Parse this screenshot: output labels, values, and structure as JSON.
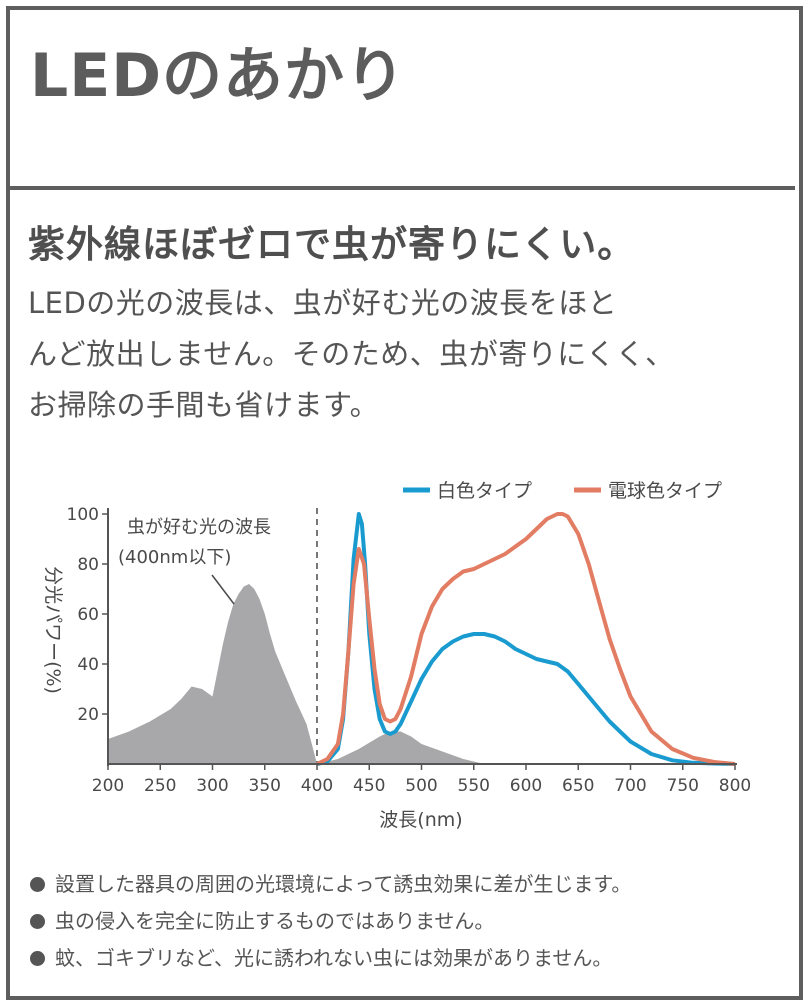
{
  "header": {
    "title": "LEDのあかり"
  },
  "content": {
    "subtitle": "紫外線ほぼゼロで虫が寄りにくい。",
    "body_lines": [
      "LEDの光の波長は、虫が好む光の波長をほと",
      "んど放出しません。そのため、虫が寄りにくく、",
      "お掃除の手間も省けます。"
    ]
  },
  "chart_data": {
    "type": "line",
    "xlabel": "波長(nm)",
    "ylabel": "分光パワー(%)",
    "xlim": [
      200,
      800
    ],
    "ylim": [
      0,
      100
    ],
    "x_ticks": [
      200,
      250,
      300,
      350,
      400,
      450,
      500,
      550,
      600,
      650,
      700,
      750,
      800
    ],
    "y_ticks": [
      20,
      40,
      60,
      80,
      100
    ],
    "grid": false,
    "legend_position": "top-right",
    "insect_region": {
      "label_line1": "虫が好む光の波長",
      "label_line2": "(400nm以下)",
      "boundary_x": 400,
      "color": "#a8a8aa",
      "x": [
        200,
        220,
        240,
        260,
        270,
        280,
        290,
        300,
        310,
        315,
        320,
        325,
        330,
        335,
        340,
        345,
        350,
        355,
        360,
        370,
        380,
        390,
        395,
        400
      ],
      "values": [
        10,
        13,
        17,
        22,
        26,
        31,
        30,
        27,
        48,
        57,
        64,
        68,
        71,
        72,
        70,
        66,
        60,
        52,
        45,
        35,
        25,
        16,
        8,
        0
      ]
    },
    "series": [
      {
        "name": "白色タイプ",
        "color": "#1a9bd0",
        "x": [
          400,
          410,
          420,
          425,
          430,
          435,
          440,
          443,
          446,
          450,
          455,
          460,
          465,
          470,
          475,
          480,
          490,
          500,
          510,
          520,
          530,
          540,
          550,
          560,
          570,
          580,
          590,
          600,
          610,
          620,
          630,
          640,
          650,
          660,
          670,
          680,
          690,
          700,
          720,
          740,
          760,
          780,
          800
        ],
        "values": [
          0,
          1,
          6,
          18,
          45,
          82,
          100,
          96,
          80,
          52,
          30,
          18,
          13,
          12,
          13,
          16,
          25,
          34,
          41,
          46,
          49,
          51,
          52,
          52,
          51,
          49,
          46,
          44,
          42,
          41,
          40,
          37,
          32,
          27,
          22,
          17,
          13,
          9,
          4,
          1.5,
          0.5,
          0.2,
          0
        ]
      },
      {
        "name": "電球色タイプ",
        "color": "#e27c62",
        "x": [
          400,
          410,
          420,
          425,
          430,
          435,
          440,
          445,
          450,
          455,
          460,
          465,
          470,
          475,
          480,
          490,
          500,
          510,
          520,
          530,
          540,
          550,
          560,
          570,
          580,
          590,
          600,
          610,
          620,
          630,
          635,
          640,
          650,
          660,
          670,
          680,
          690,
          700,
          720,
          740,
          760,
          780,
          800
        ],
        "values": [
          0,
          2,
          8,
          20,
          45,
          72,
          86,
          80,
          58,
          38,
          24,
          18,
          17,
          18,
          22,
          35,
          52,
          63,
          70,
          74,
          77,
          78,
          80,
          82,
          84,
          87,
          90,
          94,
          98,
          100,
          100,
          99,
          92,
          80,
          65,
          50,
          38,
          27,
          13,
          6,
          2.5,
          0.8,
          0
        ]
      }
    ]
  },
  "notes": [
    "設置した器具の周囲の光環境によって誘虫効果に差が生じます。",
    "虫の侵入を完全に防止するものではありません。",
    "蚊、ゴキブリなど、光に誘われない虫には効果がありません。"
  ]
}
